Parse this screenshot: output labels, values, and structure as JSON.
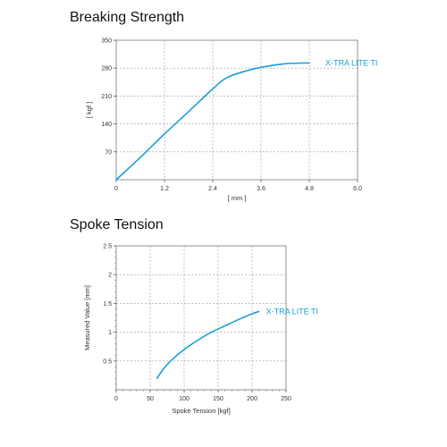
{
  "chart_data": [
    {
      "type": "line",
      "title": "Breaking Strength",
      "xlabel": "[ mm ]",
      "ylabel": "[ kgf ]",
      "xlim": [
        0,
        6.0
      ],
      "ylim": [
        0,
        350
      ],
      "xticks": [
        "0",
        "1.2",
        "2.4",
        "3.6",
        "4.8",
        "6.0"
      ],
      "yticks": [
        "70",
        "140",
        "210",
        "280",
        "350"
      ],
      "grid": true,
      "series": [
        {
          "name": "X-TRA LITE TI",
          "color": "#1a9fd6",
          "x": [
            0,
            0.6,
            1.2,
            1.8,
            2.4,
            2.7,
            3.0,
            3.6,
            4.2,
            4.8
          ],
          "y": [
            0,
            56,
            115,
            171,
            228,
            253,
            266,
            282,
            291,
            293
          ]
        }
      ]
    },
    {
      "type": "line",
      "title": "Spoke Tension",
      "xlabel": "Spoke Tension [kgf]",
      "ylabel": "Measured Value [mm]",
      "xlim": [
        0,
        250
      ],
      "ylim": [
        0,
        2.5
      ],
      "xticks": [
        "0",
        "50",
        "100",
        "150",
        "200",
        "250"
      ],
      "yticks": [
        "0.5",
        "1",
        "1.5",
        "2",
        "2.5"
      ],
      "grid": true,
      "series": [
        {
          "name": "X-TRA LITE TI",
          "color": "#1a9fd6",
          "x": [
            60,
            70,
            80,
            100,
            120,
            140,
            160,
            180,
            200,
            210
          ],
          "y": [
            0.2,
            0.37,
            0.5,
            0.7,
            0.86,
            1.0,
            1.11,
            1.22,
            1.32,
            1.36
          ]
        }
      ]
    }
  ]
}
